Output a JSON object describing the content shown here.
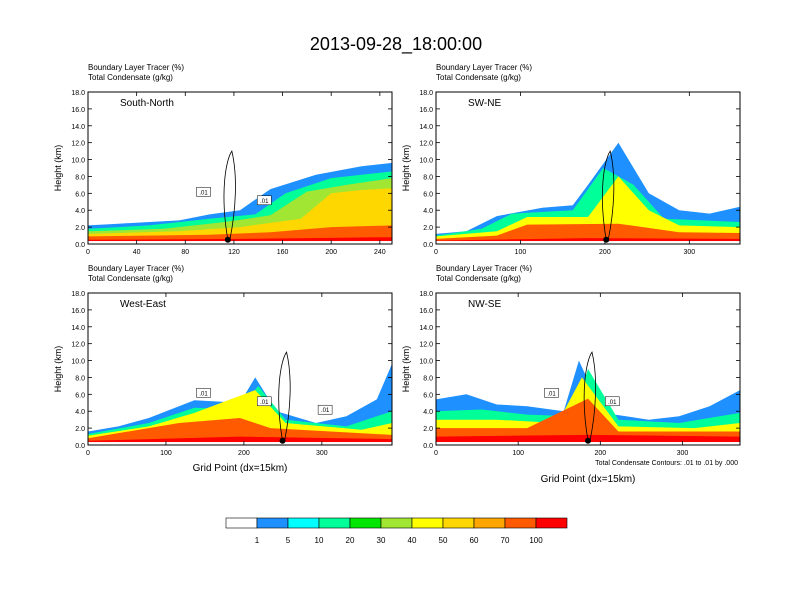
{
  "title": "2013-09-28_18:00:00",
  "footnote": "Total Condensate Contours: .01 to .01 by .000",
  "colorbar": {
    "colors": [
      "#ffffff",
      "#1e90ff",
      "#00ffff",
      "#00ff99",
      "#00e600",
      "#a0e632",
      "#ffff00",
      "#ffd700",
      "#ffa500",
      "#ff5a00",
      "#ff0000"
    ],
    "labels": [
      "1",
      "5",
      "10",
      "20",
      "30",
      "40",
      "50",
      "60",
      "70",
      "100"
    ]
  },
  "chart_data": [
    {
      "type": "heatmap",
      "panel_label": "South-North",
      "subtitle_lines": [
        "Boundary Layer Tracer   (%)",
        "Total Condensate   (g/kg)"
      ],
      "ylabel": "Height (km)",
      "xlabel": "",
      "xlim": [
        0,
        250
      ],
      "ylim": [
        0,
        18
      ],
      "xticks": [
        "0",
        "40",
        "80",
        "120",
        "160",
        "200",
        "240"
      ],
      "yticks": [
        "0.0",
        "2.0",
        "4.0",
        "6.0",
        "8.0",
        "10.0",
        "12.0",
        "14.0",
        "16.0",
        "18.0"
      ],
      "contour_labels": [
        ".01",
        ".01"
      ]
    },
    {
      "type": "heatmap",
      "panel_label": "SW-NE",
      "subtitle_lines": [
        "Boundary Layer Tracer   (%)",
        "Total Condensate   (g/kg)"
      ],
      "ylabel": "Height (km)",
      "xlabel": "",
      "xlim": [
        0,
        360
      ],
      "ylim": [
        0,
        18
      ],
      "xticks": [
        "0",
        "100",
        "200",
        "300"
      ],
      "yticks": [
        "0.0",
        "2.0",
        "4.0",
        "6.0",
        "8.0",
        "10.0",
        "12.0",
        "14.0",
        "16.0",
        "18.0"
      ],
      "contour_labels": []
    },
    {
      "type": "heatmap",
      "panel_label": "West-East",
      "subtitle_lines": [
        "Boundary Layer Tracer   (%)",
        "Total Condensate   (g/kg)"
      ],
      "ylabel": "Height (km)",
      "xlabel": "Grid Point (dx=15km)",
      "xlim": [
        0,
        390
      ],
      "ylim": [
        0,
        18
      ],
      "xticks": [
        "0",
        "100",
        "200",
        "300"
      ],
      "yticks": [
        "0.0",
        "2.0",
        "4.0",
        "6.0",
        "8.0",
        "10.0",
        "12.0",
        "14.0",
        "16.0",
        "18.0"
      ],
      "contour_labels": [
        ".01",
        ".01",
        ".01"
      ]
    },
    {
      "type": "heatmap",
      "panel_label": "NW-SE",
      "subtitle_lines": [
        "Boundary Layer Tracer   (%)",
        "Total Condensate   (g/kg)"
      ],
      "ylabel": "Height (km)",
      "xlabel": "Grid Point (dx=15km)",
      "xlim": [
        0,
        370
      ],
      "ylim": [
        0,
        18
      ],
      "xticks": [
        "0",
        "100",
        "200",
        "300"
      ],
      "yticks": [
        "0.0",
        "2.0",
        "4.0",
        "6.0",
        "8.0",
        "10.0",
        "12.0",
        "14.0",
        "16.0",
        "18.0"
      ],
      "contour_labels": [
        ".01",
        ".01"
      ]
    }
  ]
}
